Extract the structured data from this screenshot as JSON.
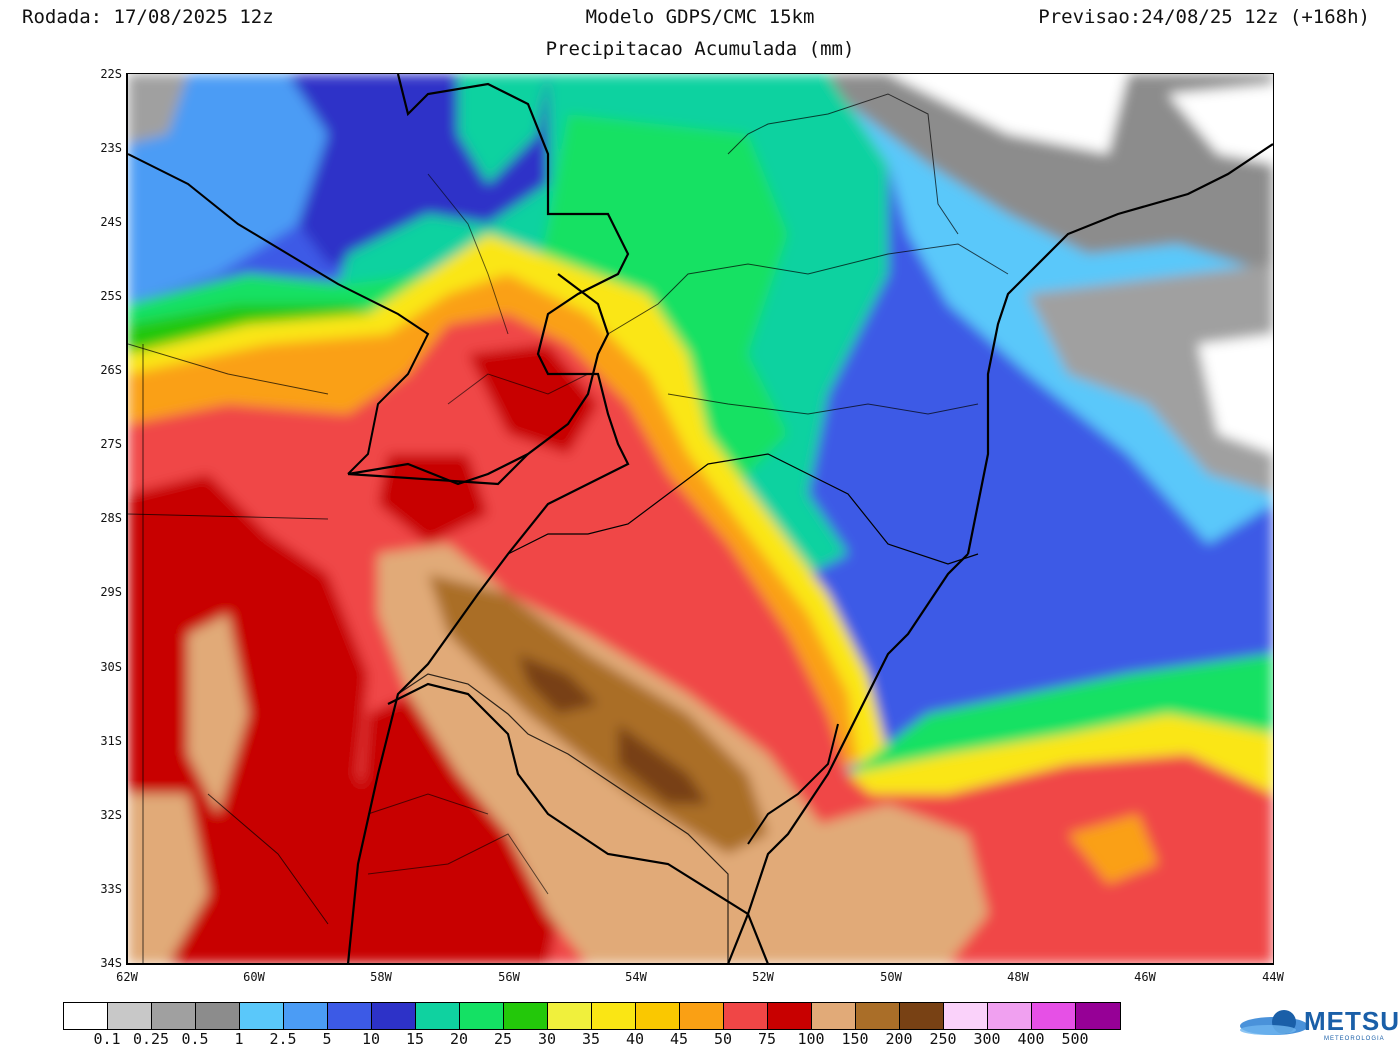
{
  "header": {
    "run": "Rodada: 17/08/2025 12z",
    "model": "Modelo GDPS/CMC 15km",
    "subtitle": "Precipitacao Acumulada (mm)",
    "forecast": "Previsao:24/08/25 12z (+168h)"
  },
  "axes": {
    "lat_labels": [
      "22S",
      "23S",
      "24S",
      "25S",
      "26S",
      "27S",
      "28S",
      "29S",
      "30S",
      "31S",
      "32S",
      "33S",
      "34S"
    ],
    "lon_labels": [
      "62W",
      "60W",
      "58W",
      "56W",
      "54W",
      "52W",
      "50W",
      "48W",
      "46W",
      "44W"
    ]
  },
  "colorbar": {
    "colors": [
      "#ffffff",
      "#c8c8c8",
      "#a0a0a0",
      "#8c8c8c",
      "#5ac8fa",
      "#4b9cf5",
      "#3c5ae6",
      "#2d32c8",
      "#0fd2a0",
      "#14e164",
      "#23c80a",
      "#f0f03c",
      "#fae614",
      "#fac800",
      "#faa014",
      "#f04646",
      "#c80000",
      "#e1aa78",
      "#aa6e28",
      "#784114",
      "#fad2fa",
      "#f0a0f0",
      "#e650e6",
      "#960096"
    ],
    "labels": [
      "0.1",
      "0.25",
      "0.5",
      "1",
      "2.5",
      "5",
      "10",
      "15",
      "20",
      "25",
      "30",
      "35",
      "40",
      "45",
      "50",
      "75",
      "100",
      "150",
      "200",
      "250",
      "300",
      "400",
      "500"
    ]
  },
  "logo": {
    "name": "METSUL",
    "sub": "METEOROLOGIA"
  }
}
